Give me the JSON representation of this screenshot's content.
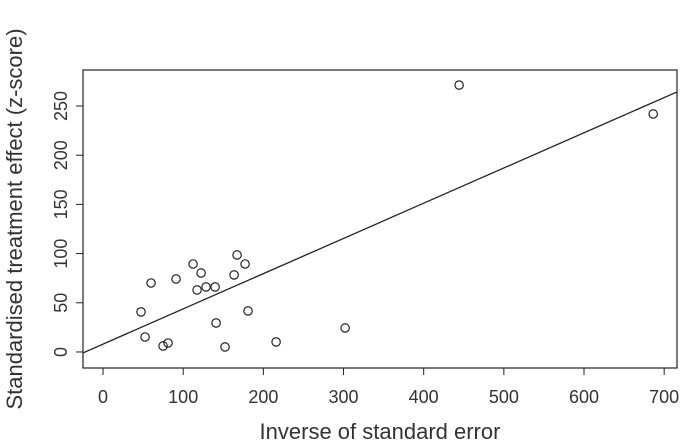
{
  "chart_data": {
    "type": "scatter",
    "x_label": "Inverse of standard error",
    "y_label": "Standardised treatment effect (z-score)",
    "x": [
      47.4,
      52.4,
      59.9,
      74.9,
      81.1,
      91.1,
      112.3,
      117.3,
      122.3,
      128.5,
      139.8,
      141.0,
      152.2,
      163.5,
      167.2,
      177.2,
      180.9,
      215.9,
      302.0,
      444.2,
      686.3
    ],
    "values": [
      40.7,
      15.2,
      70.1,
      6.1,
      9.1,
      74.2,
      89.4,
      63.0,
      80.3,
      66.1,
      66.1,
      29.5,
      5.1,
      78.3,
      98.6,
      89.4,
      41.7,
      10.2,
      24.4,
      271.3,
      241.9
    ],
    "fit_line": {
      "intercept": 8,
      "slope": 0.358
    },
    "color": "#222222",
    "xlim": [
      -25,
      716
    ],
    "ylim": [
      -16.3,
      286.6
    ],
    "xticks": [
      0,
      100,
      200,
      300,
      400,
      500,
      600,
      700
    ],
    "yticks": [
      0,
      50,
      100,
      150,
      200,
      250
    ]
  }
}
